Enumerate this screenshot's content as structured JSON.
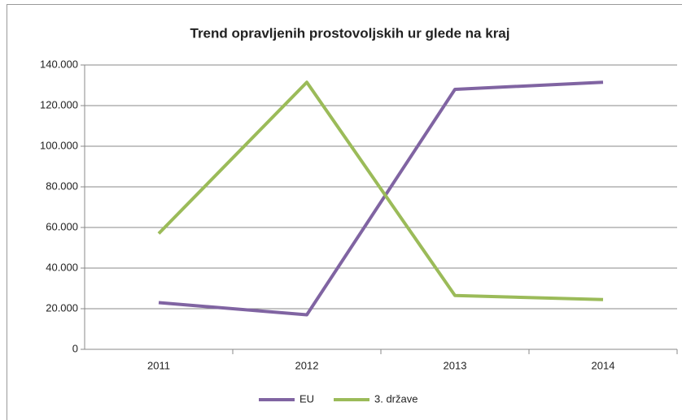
{
  "chart_data": {
    "type": "line",
    "title": "Trend opravljenih prostovoljskih ur glede na kraj",
    "categories": [
      "2011",
      "2012",
      "2013",
      "2014"
    ],
    "series": [
      {
        "name": "EU",
        "color": "#8064a2",
        "values": [
          23000,
          17000,
          128000,
          131500
        ]
      },
      {
        "name": "3. države",
        "color": "#9bbb59",
        "values": [
          57000,
          131500,
          26500,
          24500
        ]
      }
    ],
    "ylim": [
      0,
      140000
    ],
    "yticks": [
      0,
      {
        "value": 20000,
        "label": "20.000"
      },
      {
        "value": 40000,
        "label": "40.000"
      },
      {
        "value": 60000,
        "label": "60.000"
      },
      {
        "value": 80000,
        "label": "80.000"
      },
      {
        "value": 100000,
        "label": "100.000"
      },
      {
        "value": 120000,
        "label": "120.000"
      },
      {
        "value": 140000,
        "label": "140.000"
      }
    ],
    "grid": true,
    "legend": "bottom"
  }
}
